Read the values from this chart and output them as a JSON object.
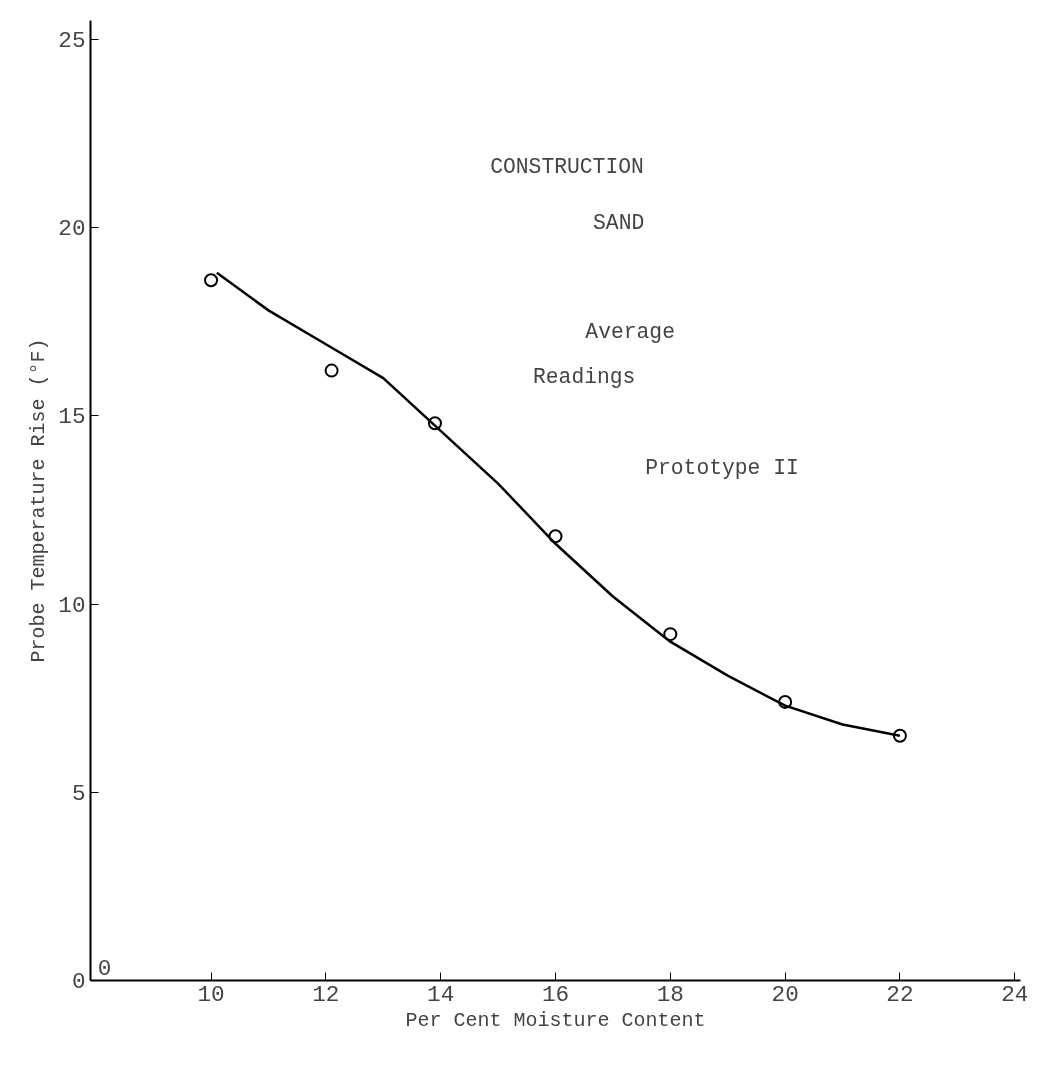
{
  "chart_data": {
    "type": "scatter",
    "xlabel": "Per Cent Moisture Content",
    "ylabel": "Probe Temperature Rise (°F)",
    "xlim": [
      7.9,
      24.1
    ],
    "ylim": [
      0,
      25.5
    ],
    "xticks": [
      10,
      12,
      14,
      16,
      18,
      20,
      22,
      24
    ],
    "yticks": [
      0,
      5,
      10,
      15,
      20,
      25
    ],
    "grid": false,
    "marker": "circle",
    "annotations": [
      "CONSTRUCTION",
      "SAND",
      "Average",
      "Readings",
      "Prototype II",
      "0"
    ],
    "series": [
      {
        "color": "#000000",
        "x": [
          10,
          12.1,
          13.9,
          16,
          18,
          20,
          22
        ],
        "values": [
          18.6,
          16.2,
          14.8,
          11.8,
          9.2,
          7.4,
          6.5
        ]
      },
      {
        "type": "line",
        "color": "#000000",
        "marker": "none",
        "line_style": "solid",
        "x": [
          10.1,
          11,
          12,
          13,
          14,
          15,
          16,
          17,
          18,
          19,
          20,
          21,
          22
        ],
        "values": [
          18.8,
          17.8,
          16.9,
          16.0,
          14.6,
          13.2,
          11.6,
          10.2,
          9.0,
          8.1,
          7.3,
          6.8,
          6.5
        ]
      }
    ]
  }
}
